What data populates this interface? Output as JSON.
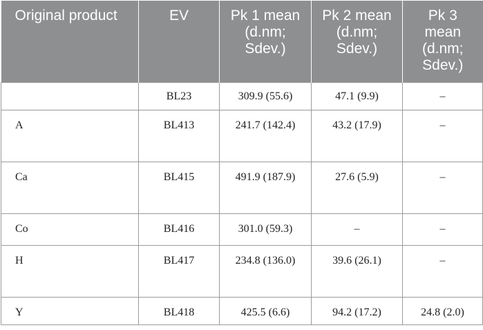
{
  "table": {
    "headers": [
      "Original product",
      "EV",
      "Pk 1 mean (d.nm; Sdev.)",
      "Pk 2 mean (d.nm; Sdev.)",
      "Pk 3 mean (d.nm; Sdev.)"
    ],
    "rows": [
      [
        "",
        "BL23",
        "309.9 (55.6)",
        "47.1 (9.9)",
        "–"
      ],
      [
        "A",
        "BL413",
        "241.7 (142.4)",
        "43.2 (17.9)",
        "–"
      ],
      [
        "Ca",
        "BL415",
        "491.9 (187.9)",
        "27.6 (5.9)",
        "–"
      ],
      [
        "Co",
        "BL416",
        "301.0 (59.3)",
        "–",
        "–"
      ],
      [
        "H",
        "BL417",
        "234.8 (136.0)",
        "39.6 (26.1)",
        "–"
      ],
      [
        "Y",
        "BL418",
        "425.5 (6.6)",
        "94.2 (17.2)",
        "24.8 (2.0)"
      ]
    ]
  }
}
